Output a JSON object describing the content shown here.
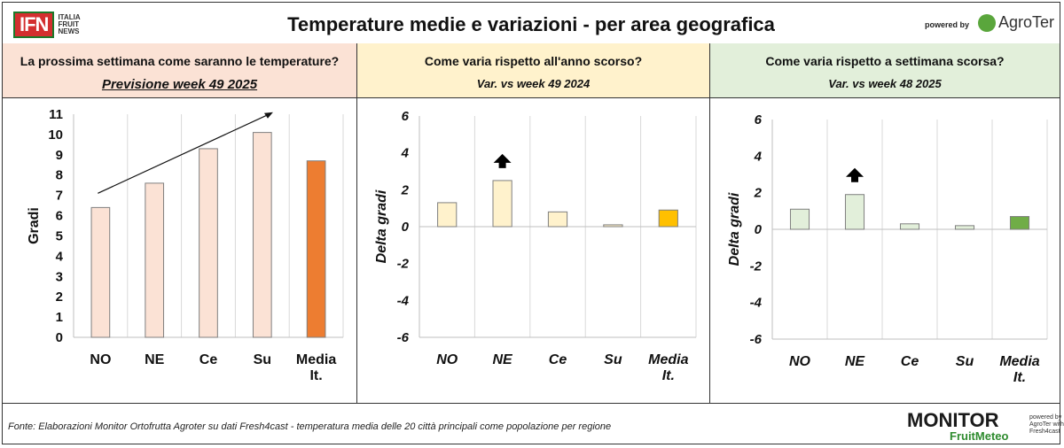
{
  "header": {
    "logo_text": "IFN",
    "logo_sub": [
      "ITALIA",
      "FRUIT",
      "NEWS"
    ],
    "title": "Temperature medie e variazioni - per area geografica",
    "powered_by": "powered by",
    "brand": "AgroTer"
  },
  "panels": [
    {
      "question": "La prossima settimana come saranno le temperature?",
      "subtitle": "Previsione week 49 2025",
      "header_color": "#fbe2d5"
    },
    {
      "question": "Come varia rispetto all'anno scorso?",
      "subtitle": "Var. vs week 49 2024",
      "header_color": "#fff2cc"
    },
    {
      "question": "Come varia rispetto a settimana scorsa?",
      "subtitle": "Var. vs week 48 2025",
      "header_color": "#e2efda"
    }
  ],
  "chart_data": [
    {
      "type": "bar",
      "categories": [
        "NO",
        "NE",
        "Ce",
        "Su",
        "Media It."
      ],
      "values": [
        6.4,
        7.6,
        9.3,
        10.1,
        8.7
      ],
      "ylabel": "Gradi",
      "ylim": [
        0,
        11
      ],
      "yticks": [
        0,
        1,
        2,
        3,
        4,
        5,
        6,
        7,
        8,
        9,
        10,
        11
      ],
      "colors": [
        "#fbe2d5",
        "#fbe2d5",
        "#fbe2d5",
        "#fbe2d5",
        "#ed7d31"
      ],
      "grid": "vertical separators",
      "annotation": "upward trend arrow"
    },
    {
      "type": "bar",
      "categories": [
        "NO",
        "NE",
        "Ce",
        "Su",
        "Media It."
      ],
      "values": [
        1.3,
        2.5,
        0.8,
        0.1,
        0.9
      ],
      "ylabel": "Delta gradi",
      "ylim": [
        -6,
        6
      ],
      "yticks": [
        -6,
        -4,
        -2,
        0,
        2,
        4,
        6
      ],
      "colors": [
        "#fff2cc",
        "#fff2cc",
        "#fff2cc",
        "#fff2cc",
        "#ffc000"
      ],
      "highlight_arrow": "NE"
    },
    {
      "type": "bar",
      "categories": [
        "NO",
        "NE",
        "Ce",
        "Su",
        "Media It."
      ],
      "values": [
        1.1,
        1.9,
        0.3,
        0.2,
        0.7
      ],
      "ylabel": "Delta gradi",
      "ylim": [
        -6,
        6
      ],
      "yticks": [
        -6,
        -4,
        -2,
        0,
        2,
        4,
        6
      ],
      "colors": [
        "#e2efda",
        "#e2efda",
        "#e2efda",
        "#e2efda",
        "#70ad47"
      ],
      "highlight_arrow": "NE"
    }
  ],
  "footer": {
    "source": "Fonte: Elaborazioni Monitor Ortofrutta Agroter su dati Fresh4cast - temperatura media delle 20 città principali come popolazione per regione",
    "monitor_title": "MONITOR",
    "monitor_sub": "FruitMeteo",
    "monitor_powered": "powered by AgroTer with Fresh4cast"
  }
}
